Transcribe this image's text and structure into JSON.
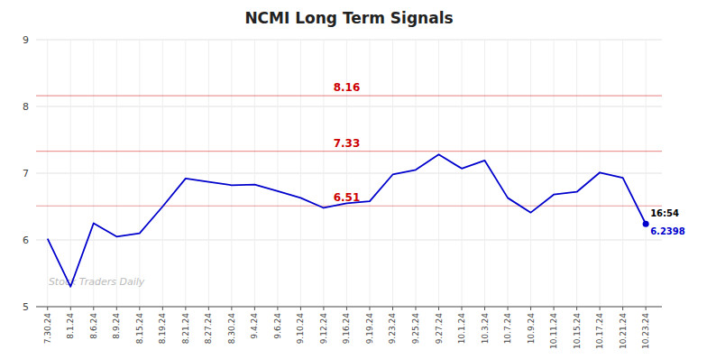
{
  "chart_data": {
    "type": "line",
    "title": "NCMI Long Term Signals",
    "categories": [
      "7.30.24",
      "8.1.24",
      "8.6.24",
      "8.9.24",
      "8.15.24",
      "8.19.24",
      "8.21.24",
      "8.27.24",
      "8.30.24",
      "9.4.24",
      "9.6.24",
      "9.10.24",
      "9.12.24",
      "9.16.24",
      "9.19.24",
      "9.23.24",
      "9.25.24",
      "9.27.24",
      "10.1.24",
      "10.3.24",
      "10.7.24",
      "10.9.24",
      "10.11.24",
      "10.15.24",
      "10.17.24",
      "10.21.24",
      "10.23.24"
    ],
    "values": [
      6.02,
      5.3,
      6.25,
      6.05,
      6.1,
      6.5,
      6.92,
      6.87,
      6.82,
      6.83,
      6.73,
      6.63,
      6.48,
      6.55,
      6.58,
      6.98,
      7.05,
      7.28,
      7.07,
      7.19,
      6.63,
      6.41,
      6.68,
      6.72,
      7.01,
      6.93,
      6.2398
    ],
    "color": "#0000cc",
    "ylim": [
      5.0,
      9.0
    ],
    "yticks": [
      5,
      6,
      7,
      8,
      9
    ],
    "grid": true,
    "hlines": [
      {
        "value": 8.16,
        "label": "8.16",
        "color": "#cc0000"
      },
      {
        "value": 7.33,
        "label": "7.33",
        "color": "#cc0000"
      },
      {
        "value": 6.51,
        "label": "6.51",
        "color": "#cc0000"
      }
    ],
    "hline_label_category": "9.16.24",
    "last_point": {
      "time_label": "16:54",
      "value_label": "6.2398",
      "color": "#0000cc"
    },
    "watermark": "Stock Traders Daily"
  }
}
